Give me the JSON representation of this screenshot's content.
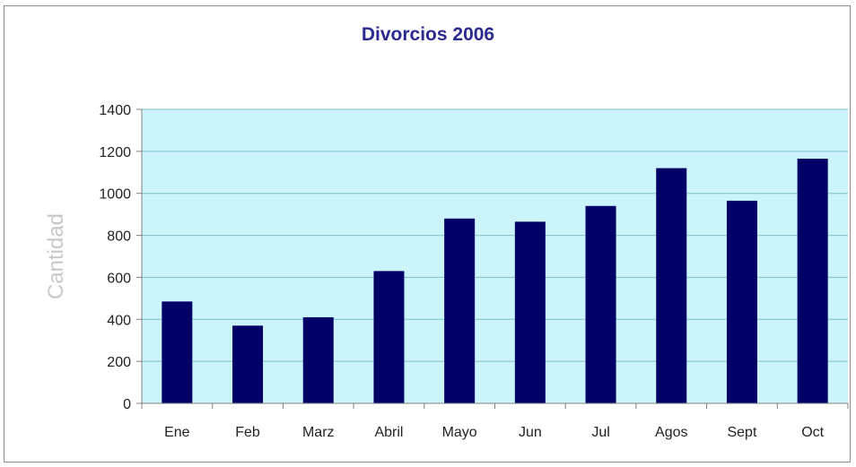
{
  "chart_data": {
    "type": "bar",
    "title": "Divorcios 2006",
    "xlabel": "",
    "ylabel": "Cantidad",
    "categories": [
      "Ene",
      "Feb",
      "Marz",
      "Abril",
      "Mayo",
      "Jun",
      "Jul",
      "Agos",
      "Sept",
      "Oct"
    ],
    "series": [
      {
        "values": [
          485,
          370,
          410,
          630,
          880,
          865,
          940,
          1120,
          965,
          1165
        ]
      }
    ],
    "yticks": [
      "0",
      "200",
      "400",
      "600",
      "800",
      "1000",
      "1200",
      "1400"
    ],
    "ylim": [
      0,
      1400
    ],
    "grid": true,
    "legend": "none",
    "colors": {
      "bar": "#000066",
      "plot_background": "#ccf5fb",
      "gridline": "#7fbfcc",
      "title": "#2b2b8f"
    }
  }
}
